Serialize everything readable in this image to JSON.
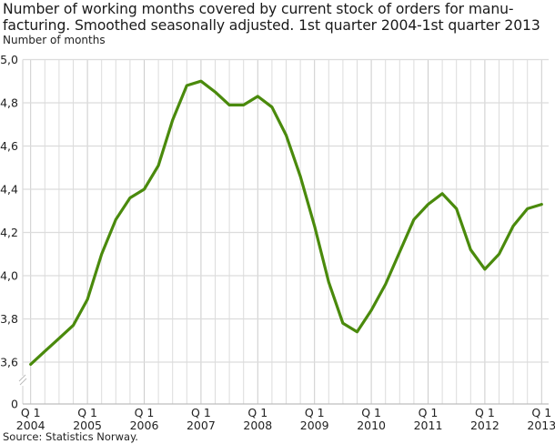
{
  "title_lines": [
    "Number of working months covered by current stock of orders for manu-",
    "facturing. Smoothed seasonally adjusted. 1st quarter 2004-1st quarter 2013"
  ],
  "y_axis_label": "Number of months",
  "source": "Source: Statistics Norway.",
  "colors": {
    "line": "#4a8a0c",
    "grid": "#dcdcdc",
    "grid_major": "#cccccc",
    "axis": "#bdbdbd"
  },
  "chart_data": {
    "type": "line",
    "title": "Number of working months covered by current stock of orders for manufacturing. Smoothed seasonally adjusted. 1st quarter 2004-1st quarter 2013",
    "xlabel": "",
    "ylabel": "Number of months",
    "ylim": [
      3.6,
      5.0
    ],
    "y_axis_break": true,
    "y_ticks": [
      "0",
      "3,6",
      "3,8",
      "4,0",
      "4,2",
      "4,4",
      "4,6",
      "4,8",
      "5,0"
    ],
    "y_tick_values": [
      0,
      3.6,
      3.8,
      4.0,
      4.2,
      4.4,
      4.6,
      4.8,
      5.0
    ],
    "x_tick_labels": [
      [
        "Q 1",
        "2004"
      ],
      [
        "Q 1",
        "2005"
      ],
      [
        "Q 1",
        "2006"
      ],
      [
        "Q 1",
        "2007"
      ],
      [
        "Q 1",
        "2008"
      ],
      [
        "Q 1",
        "2009"
      ],
      [
        "Q 1",
        "2010"
      ],
      [
        "Q 1",
        "2011"
      ],
      [
        "Q 1",
        "2012"
      ],
      [
        "Q 1",
        "2013"
      ]
    ],
    "grid": true,
    "legend": null,
    "x": [
      "2004Q1",
      "2004Q2",
      "2004Q3",
      "2004Q4",
      "2005Q1",
      "2005Q2",
      "2005Q3",
      "2005Q4",
      "2006Q1",
      "2006Q2",
      "2006Q3",
      "2006Q4",
      "2007Q1",
      "2007Q2",
      "2007Q3",
      "2007Q4",
      "2008Q1",
      "2008Q2",
      "2008Q3",
      "2008Q4",
      "2009Q1",
      "2009Q2",
      "2009Q3",
      "2009Q4",
      "2010Q1",
      "2010Q2",
      "2010Q3",
      "2010Q4",
      "2011Q1",
      "2011Q2",
      "2011Q3",
      "2011Q4",
      "2012Q1",
      "2012Q2",
      "2012Q3",
      "2012Q4",
      "2013Q1"
    ],
    "series": [
      {
        "name": "Number of working months",
        "values": [
          3.59,
          3.65,
          3.71,
          3.77,
          3.89,
          4.1,
          4.26,
          4.36,
          4.4,
          4.51,
          4.72,
          4.88,
          4.9,
          4.85,
          4.79,
          4.79,
          4.83,
          4.78,
          4.65,
          4.46,
          4.23,
          3.97,
          3.78,
          3.74,
          3.84,
          3.96,
          4.11,
          4.26,
          4.33,
          4.38,
          4.31,
          4.12,
          4.03,
          4.1,
          4.23,
          4.31,
          4.33
        ]
      }
    ]
  }
}
